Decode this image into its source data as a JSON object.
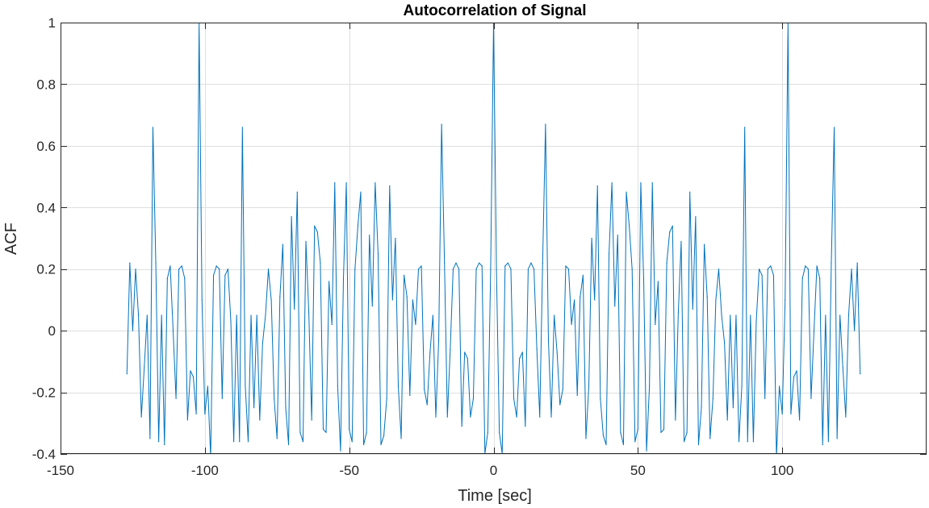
{
  "chart_data": {
    "type": "line",
    "title": "Autocorrelation of Signal",
    "xlabel": "Time [sec]",
    "ylabel": "ACF",
    "xlim": [
      -150,
      150
    ],
    "ylim": [
      -0.4,
      1
    ],
    "xticks": [
      -150,
      -100,
      -50,
      0,
      50,
      100
    ],
    "xtick_labels": [
      "-150",
      "-100",
      "-50",
      "0",
      "50",
      "100"
    ],
    "yticks": [
      -0.4,
      -0.2,
      0,
      0.2,
      0.4,
      0.6,
      0.8,
      1
    ],
    "ytick_labels": [
      "-0.4",
      "-0.2",
      "0",
      "0.2",
      "0.4",
      "0.6",
      "0.8",
      "1"
    ],
    "grid": true,
    "series": [
      {
        "color": "#0072BD",
        "x": [
          -127,
          -126,
          -125,
          -124,
          -123,
          -122,
          -121,
          -120,
          -119,
          -118,
          -117,
          -116,
          -115,
          -114,
          -113,
          -112,
          -111,
          -110,
          -109,
          -108,
          -107,
          -106,
          -105,
          -104,
          -103,
          -102,
          -101,
          -100,
          -99,
          -98,
          -97,
          -96,
          -95,
          -94,
          -93,
          -92,
          -91,
          -90,
          -89,
          -88,
          -87,
          -86,
          -85,
          -84,
          -83,
          -82,
          -81,
          -80,
          -79,
          -78,
          -77,
          -76,
          -75,
          -74,
          -73,
          -72,
          -71,
          -70,
          -69,
          -68,
          -67,
          -66,
          -65,
          -64,
          -63,
          -62,
          -61,
          -60,
          -59,
          -58,
          -57,
          -56,
          -55,
          -54,
          -53,
          -52,
          -51,
          -50,
          -49,
          -48,
          -47,
          -46,
          -45,
          -44,
          -43,
          -42,
          -41,
          -40,
          -39,
          -38,
          -37,
          -36,
          -35,
          -34,
          -33,
          -32,
          -31,
          -30,
          -29,
          -28,
          -27,
          -26,
          -25,
          -24,
          -23,
          -22,
          -21,
          -20,
          -19,
          -18,
          -17,
          -16,
          -15,
          -14,
          -13,
          -12,
          -11,
          -10,
          -9,
          -8,
          -7,
          -6,
          -5,
          -4,
          -3,
          -2,
          -1,
          0,
          1,
          2,
          3,
          4,
          5,
          6,
          7,
          8,
          9,
          10,
          11,
          12,
          13,
          14,
          15,
          16,
          17,
          18,
          19,
          20,
          21,
          22,
          23,
          24,
          25,
          26,
          27,
          28,
          29,
          30,
          31,
          32,
          33,
          34,
          35,
          36,
          37,
          38,
          39,
          40,
          41,
          42,
          43,
          44,
          45,
          46,
          47,
          48,
          49,
          50,
          51,
          52,
          53,
          54,
          55,
          56,
          57,
          58,
          59,
          60,
          61,
          62,
          63,
          64,
          65,
          66,
          67,
          68,
          69,
          70,
          71,
          72,
          73,
          74,
          75,
          76,
          77,
          78,
          79,
          80,
          81,
          82,
          83,
          84,
          85,
          86,
          87,
          88,
          89,
          90,
          91,
          92,
          93,
          94,
          95,
          96,
          97,
          98,
          99,
          100,
          101,
          102,
          103,
          104,
          105,
          106,
          107,
          108,
          109,
          110,
          111,
          112,
          113,
          114,
          115,
          116,
          117,
          118,
          119,
          120,
          121,
          122,
          123,
          124,
          125,
          126,
          127
        ],
        "y": [
          -0.14,
          0.22,
          0.0,
          0.2,
          0.05,
          -0.28,
          -0.12,
          0.05,
          -0.35,
          0.66,
          0.22,
          -0.36,
          0.05,
          -0.37,
          0.17,
          0.21,
          0.0,
          -0.22,
          0.2,
          0.21,
          0.17,
          -0.29,
          -0.13,
          -0.15,
          -0.27,
          1.0,
          0.1,
          -0.27,
          -0.18,
          -0.41,
          0.18,
          0.21,
          0.2,
          -0.22,
          0.18,
          0.2,
          0.03,
          -0.36,
          0.05,
          -0.36,
          0.66,
          -0.18,
          -0.36,
          0.05,
          -0.25,
          0.05,
          -0.29,
          -0.04,
          0.05,
          0.2,
          0.1,
          -0.22,
          -0.35,
          0.11,
          0.28,
          -0.25,
          -0.37,
          0.37,
          0.07,
          0.45,
          -0.33,
          -0.36,
          0.29,
          0.06,
          -0.29,
          0.34,
          0.32,
          0.22,
          -0.32,
          -0.33,
          0.16,
          0.02,
          0.48,
          -0.18,
          -0.39,
          0.17,
          0.48,
          -0.32,
          -0.36,
          0.2,
          0.34,
          0.45,
          -0.37,
          -0.33,
          0.31,
          0.08,
          0.48,
          0.25,
          -0.37,
          -0.34,
          -0.22,
          0.47,
          0.1,
          0.3,
          -0.18,
          -0.35,
          0.18,
          0.11,
          -0.21,
          0.1,
          0.02,
          0.2,
          0.21,
          -0.19,
          -0.24,
          -0.07,
          0.05,
          -0.28,
          -0.03,
          0.67,
          0.22,
          -0.28,
          -0.06,
          0.2,
          0.22,
          0.2,
          -0.31,
          -0.07,
          -0.09,
          -0.28,
          -0.22,
          0.2,
          0.22,
          0.21,
          -0.4,
          -0.33,
          0.2,
          1.0,
          0.2,
          -0.33,
          -0.4,
          0.21,
          0.22,
          0.2,
          -0.22,
          -0.28,
          -0.09,
          -0.07,
          -0.31,
          0.2,
          0.22,
          0.2,
          -0.06,
          -0.28,
          0.22,
          0.67,
          -0.03,
          -0.28,
          0.05,
          -0.07,
          -0.24,
          -0.19,
          0.21,
          0.2,
          0.02,
          0.1,
          -0.21,
          0.11,
          0.18,
          -0.35,
          -0.18,
          0.3,
          0.1,
          0.47,
          -0.22,
          -0.34,
          -0.37,
          0.25,
          0.48,
          0.08,
          0.31,
          -0.33,
          -0.37,
          0.45,
          0.34,
          0.2,
          -0.36,
          -0.32,
          0.48,
          0.17,
          -0.39,
          -0.18,
          0.48,
          0.02,
          0.16,
          -0.33,
          -0.32,
          0.22,
          0.32,
          0.34,
          -0.29,
          0.06,
          0.29,
          -0.36,
          -0.33,
          0.45,
          0.07,
          0.37,
          -0.37,
          -0.25,
          0.28,
          0.11,
          -0.35,
          -0.22,
          0.1,
          0.2,
          0.05,
          -0.04,
          -0.29,
          0.05,
          -0.25,
          0.05,
          -0.36,
          -0.18,
          0.66,
          -0.36,
          0.05,
          -0.36,
          0.03,
          0.2,
          0.18,
          -0.22,
          0.2,
          0.21,
          0.18,
          -0.41,
          -0.18,
          -0.27,
          0.1,
          1.0,
          -0.27,
          -0.15,
          -0.13,
          -0.29,
          0.17,
          0.21,
          0.2,
          -0.22,
          0.0,
          0.21,
          0.17,
          -0.37,
          0.05,
          -0.36,
          0.22,
          0.66,
          -0.35,
          0.05,
          -0.12,
          -0.28,
          0.05,
          0.2,
          0.0,
          0.22,
          -0.14
        ]
      }
    ]
  }
}
